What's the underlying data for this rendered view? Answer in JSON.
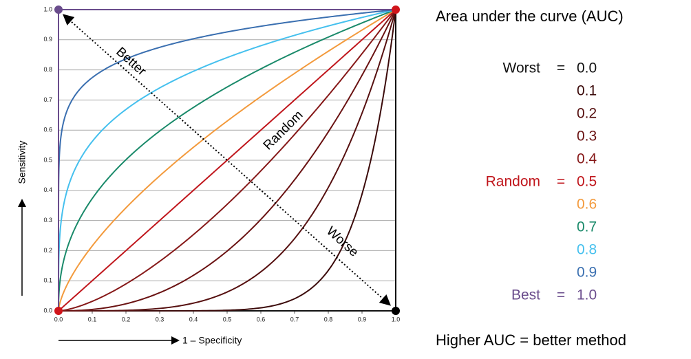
{
  "chart_data": {
    "type": "roc",
    "title": "Area under the curve (AUC)",
    "footer": "Higher AUC = better method",
    "x_label": "1 – Specificity",
    "y_label": "Sensitivity",
    "annotations": {
      "better": "Better",
      "random": "Random",
      "worse": "Worse"
    },
    "equals": "=",
    "auc": {
      "values": [
        0,
        0.1,
        0.2,
        0.3,
        0.4,
        0.5,
        0.6,
        0.7,
        0.8,
        0.9,
        1
      ],
      "value_labels": [
        "0.0",
        "0.1",
        "0.2",
        "0.3",
        "0.4",
        "0.5",
        "0.6",
        "0.7",
        "0.8",
        "0.9",
        "1.0"
      ],
      "colors": [
        "#111111",
        "#3b0a0a",
        "#561010",
        "#6a1212",
        "#861818",
        "#c0161c",
        "#f39a3c",
        "#1a8a6a",
        "#45c0ee",
        "#3a6fb0",
        "#6a4c8c"
      ],
      "ratings": [
        "Worst",
        null,
        null,
        null,
        null,
        "Random",
        null,
        null,
        null,
        null,
        "Best"
      ]
    },
    "xlim": [
      0,
      1
    ],
    "ylim": [
      0,
      1
    ],
    "xticks": [
      {
        "value": 0,
        "label": "0.0"
      },
      {
        "value": 0.1,
        "label": "0.1"
      },
      {
        "value": 0.2,
        "label": "0.2"
      },
      {
        "value": 0.3,
        "label": "0.3"
      },
      {
        "value": 0.4,
        "label": "0.4"
      },
      {
        "value": 0.5,
        "label": "0.5"
      },
      {
        "value": 0.6,
        "label": "0.6"
      },
      {
        "value": 0.7,
        "label": "0.7"
      },
      {
        "value": 0.8,
        "label": "0.8"
      },
      {
        "value": 0.9,
        "label": "0.9"
      },
      {
        "value": 1,
        "label": "1.0"
      }
    ],
    "yticks": [
      {
        "value": 0,
        "label": "0.0"
      },
      {
        "value": 0.1,
        "label": "0.1"
      },
      {
        "value": 0.2,
        "label": "0.2"
      },
      {
        "value": 0.3,
        "label": "0.3"
      },
      {
        "value": 0.4,
        "label": "0.4"
      },
      {
        "value": 0.5,
        "label": "0.5"
      },
      {
        "value": 0.6,
        "label": "0.6"
      },
      {
        "value": 0.7,
        "label": "0.7"
      },
      {
        "value": 0.8,
        "label": "0.8"
      },
      {
        "value": 0.9,
        "label": "0.9"
      },
      {
        "value": 1,
        "label": "1.0"
      }
    ],
    "grid": true
  }
}
